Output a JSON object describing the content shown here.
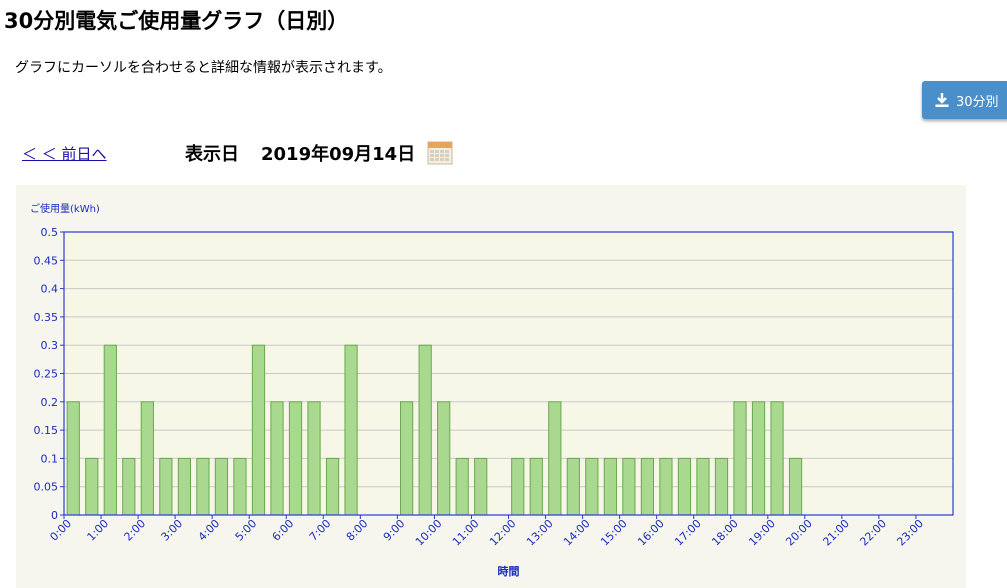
{
  "header": {
    "title": "30分別電気ご使用量グラフ（日別）",
    "subtitle": "グラフにカーソルを合わせると詳細な情報が表示されます。"
  },
  "toolbar": {
    "download_label": "30分別",
    "download_icon": "download-icon"
  },
  "nav": {
    "prev_label": "＜ ＜ 前日へ",
    "date_label": "表示日",
    "date_value": "2019年09月14日",
    "calendar_icon": "calendar-icon"
  },
  "chart_data": {
    "type": "bar",
    "ylabel": "ご使用量(kWh)",
    "xlabel": "時間",
    "ylim": [
      0,
      0.5
    ],
    "yticks": [
      "0",
      "0.05",
      "0.1",
      "0.15",
      "0.2",
      "0.25",
      "0.3",
      "0.35",
      "0.4",
      "0.45",
      "0.5"
    ],
    "tick_labels": [
      "0:00",
      "1:00",
      "2:00",
      "3:00",
      "4:00",
      "5:00",
      "6:00",
      "7:00",
      "8:00",
      "9:00",
      "10:00",
      "11:00",
      "12:00",
      "13:00",
      "14:00",
      "15:00",
      "16:00",
      "17:00",
      "18:00",
      "19:00",
      "20:00",
      "21:00",
      "22:00",
      "23:00"
    ],
    "values": [
      0.2,
      0.1,
      0.3,
      0.1,
      0.2,
      0.1,
      0.1,
      0.1,
      0.1,
      0.1,
      0.3,
      0.2,
      0.2,
      0.2,
      0.1,
      0.3,
      null,
      null,
      0.2,
      0.3,
      0.2,
      0.1,
      0.1,
      null,
      0.1,
      0.1,
      0.2,
      0.1,
      0.1,
      0.1,
      0.1,
      0.1,
      0.1,
      0.1,
      0.1,
      0.1,
      0.2,
      0.2,
      0.2,
      0.1,
      null,
      null,
      null,
      null,
      null,
      null,
      null,
      null
    ],
    "grid": true,
    "colors": {
      "bar_fill": "#a9d88f",
      "bar_stroke": "#6aa84f",
      "axis": "#2a3bd6",
      "label": "#1a2bc0"
    }
  }
}
